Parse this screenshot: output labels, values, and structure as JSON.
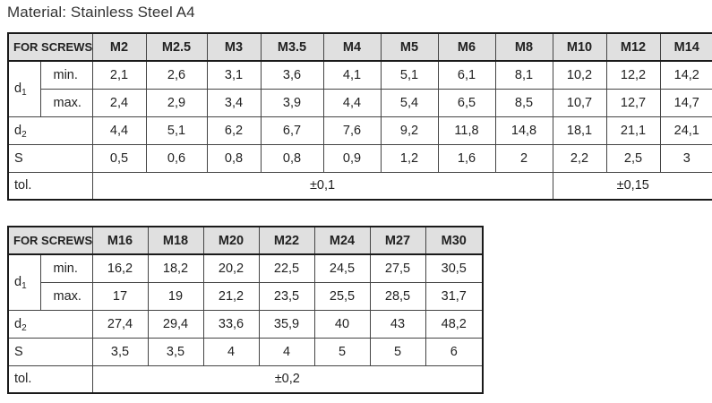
{
  "material_title": "Material: Stainless Steel A4",
  "table1": {
    "header": "FOR SCREWS",
    "sizes": [
      "M2",
      "M2.5",
      "M3",
      "M3.5",
      "M4",
      "M5",
      "M6",
      "M8",
      "M10",
      "M12",
      "M14"
    ],
    "d1_label": "d",
    "d1_sub": "1",
    "min_label": "min.",
    "max_label": "max.",
    "d1_min": [
      "2,1",
      "2,6",
      "3,1",
      "3,6",
      "4,1",
      "5,1",
      "6,1",
      "8,1",
      "10,2",
      "12,2",
      "14,2"
    ],
    "d1_max": [
      "2,4",
      "2,9",
      "3,4",
      "3,9",
      "4,4",
      "5,4",
      "6,5",
      "8,5",
      "10,7",
      "12,7",
      "14,7"
    ],
    "d2_label": "d",
    "d2_sub": "2",
    "d2": [
      "4,4",
      "5,1",
      "6,2",
      "6,7",
      "7,6",
      "9,2",
      "11,8",
      "14,8",
      "18,1",
      "21,1",
      "24,1"
    ],
    "s_label": "S",
    "s": [
      "0,5",
      "0,6",
      "0,8",
      "0,8",
      "0,9",
      "1,2",
      "1,6",
      "2",
      "2,2",
      "2,5",
      "3"
    ],
    "tol_label": "tol.",
    "tol_a": "±0,1",
    "tol_b": "±0,15"
  },
  "table2": {
    "header": "FOR SCREWS",
    "sizes": [
      "M16",
      "M18",
      "M20",
      "M22",
      "M24",
      "M27",
      "M30"
    ],
    "d1_label": "d",
    "d1_sub": "1",
    "min_label": "min.",
    "max_label": "max.",
    "d1_min": [
      "16,2",
      "18,2",
      "20,2",
      "22,5",
      "24,5",
      "27,5",
      "30,5"
    ],
    "d1_max": [
      "17",
      "19",
      "21,2",
      "23,5",
      "25,5",
      "28,5",
      "31,7"
    ],
    "d2_label": "d",
    "d2_sub": "2",
    "d2": [
      "27,4",
      "29,4",
      "33,6",
      "35,9",
      "40",
      "43",
      "48,2"
    ],
    "s_label": "S",
    "s": [
      "3,5",
      "3,5",
      "4",
      "4",
      "5",
      "5",
      "6"
    ],
    "tol_label": "tol.",
    "tol": "±0,2"
  }
}
